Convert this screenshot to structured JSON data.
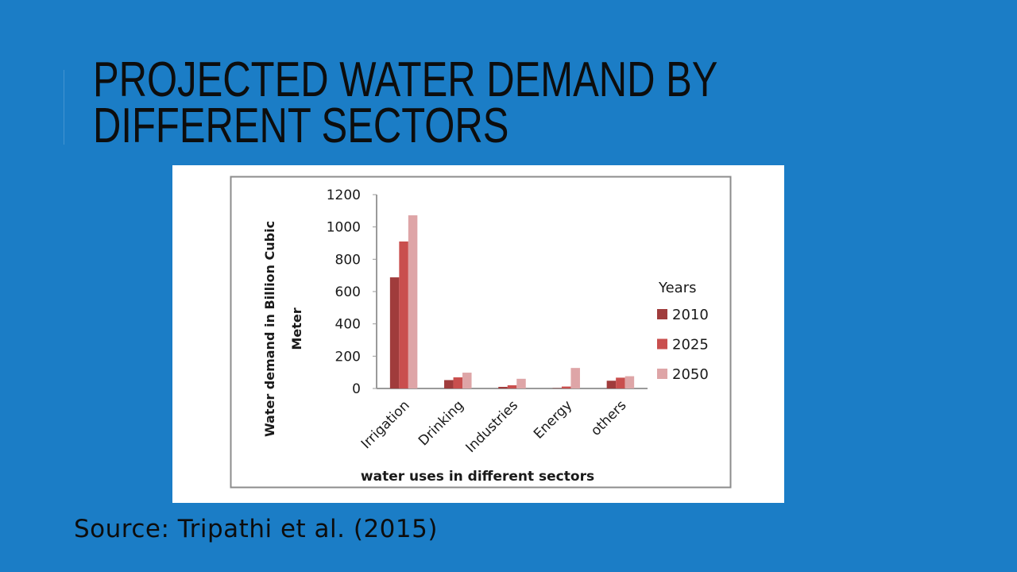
{
  "slide": {
    "title_line1": "PROJECTED WATER DEMAND BY",
    "title_line2": "DIFFERENT SECTORS",
    "source": "Source: Tripathi et al. (2015)",
    "background_color": "#1b7dc6"
  },
  "chart_data": {
    "type": "bar",
    "title": "",
    "xlabel": "water uses in different sectors",
    "ylabel": "Water demand in Billion Cubic Meter",
    "ylabel_lines": [
      "Water demand in Billion Cubic",
      "Meter"
    ],
    "categories": [
      "Irrigation",
      "Drinking",
      "Industries",
      "Energy",
      "others"
    ],
    "series": [
      {
        "name": "2010",
        "color": "#a03c3c",
        "values": [
          688,
          52,
          10,
          2,
          48
        ]
      },
      {
        "name": "2025",
        "color": "#c94f4e",
        "values": [
          910,
          69,
          20,
          12,
          67
        ]
      },
      {
        "name": "2050",
        "color": "#dea5a7",
        "values": [
          1072,
          98,
          60,
          127,
          76
        ]
      }
    ],
    "ylim": [
      0,
      1200
    ],
    "yticks": [
      0,
      200,
      400,
      600,
      800,
      1000,
      1200
    ],
    "grid": false,
    "legend": {
      "title": "Years",
      "placement": "right"
    }
  }
}
